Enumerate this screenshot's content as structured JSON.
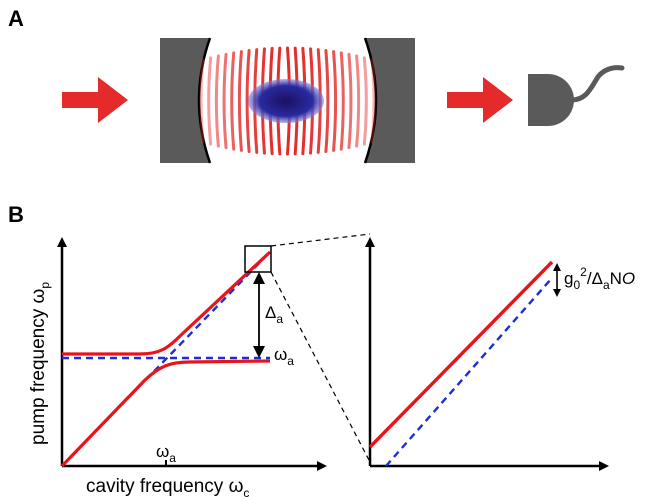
{
  "panels": {
    "a_label": "A",
    "b_label": "B"
  },
  "plot_left": {
    "y_axis_label": "pump frequency ω",
    "y_axis_sub": "p",
    "x_axis_label": "cavity frequency ω",
    "x_axis_sub": "c",
    "delta_label": "Δ",
    "delta_sub": "a",
    "omega_a_label": "ω",
    "omega_a_sub": "a",
    "x_tick_label": "ω",
    "x_tick_sub": "a"
  },
  "plot_right": {
    "shift_label_g": "g",
    "shift_label_g_sub": "0",
    "shift_label_sup": "2",
    "shift_label_mid": "/Δ",
    "shift_label_mid_sub": "a",
    "shift_label_end": "N",
    "shift_label_O": "O"
  },
  "colors": {
    "laser_red": "#e42a2a",
    "curve_red": "#e8141a",
    "dashed_blue": "#1c2fd6",
    "mirror_gray": "#5a5a5a",
    "atom_cloud": "#1a1a8c"
  },
  "icons": {
    "input_arrow": "right-arrow-icon",
    "output_arrow": "right-arrow-icon",
    "detector": "photodetector-icon"
  }
}
